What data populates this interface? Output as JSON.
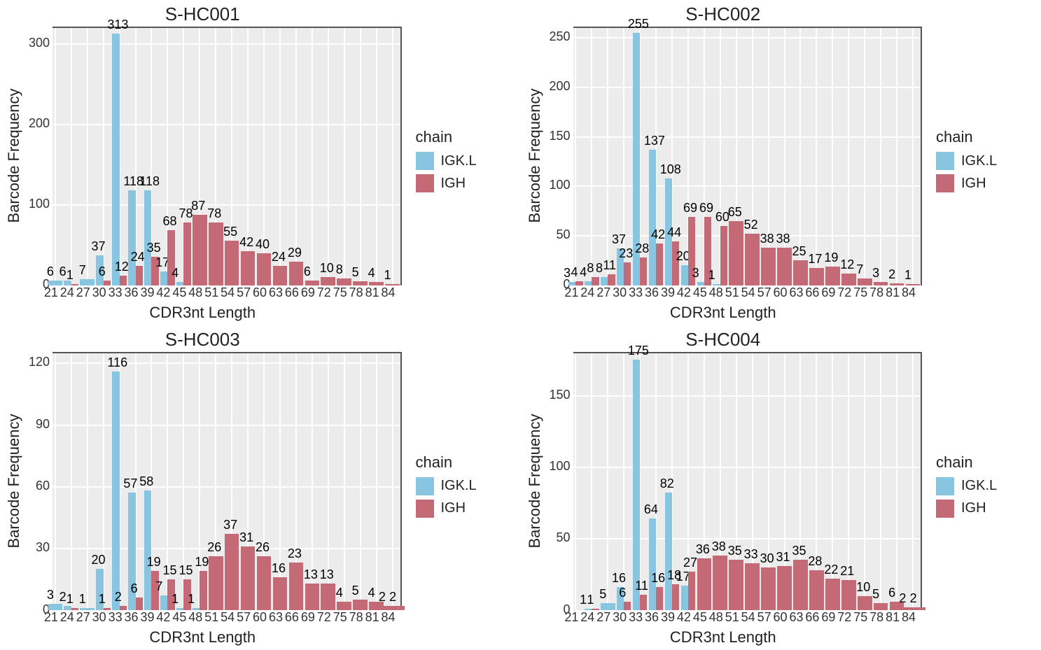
{
  "global": {
    "xlabel": "CDR3nt Length",
    "ylabel": "Barcode Frequency",
    "legend_title": "chain",
    "legend": [
      {
        "label": "IGK.L",
        "color": "#87c5e0"
      },
      {
        "label": "IGH",
        "color": "#c46a77"
      }
    ],
    "background_color": "#ffffff",
    "panel_bg": "#ececec",
    "grid_color": "#ffffff",
    "axis_color": "#555555",
    "label_color": "#000000",
    "bar_border": "none",
    "bar_width": 0.9,
    "value_label_fontsize": 18,
    "axis_tick_fontsize": 18,
    "title_fontsize": 26,
    "xticks": [
      21,
      24,
      27,
      30,
      33,
      36,
      39,
      42,
      45,
      48,
      51,
      54,
      57,
      60,
      63,
      66,
      69,
      72,
      75,
      78,
      81,
      84
    ],
    "x_range": [
      20.5,
      85.5
    ]
  },
  "panels": [
    {
      "title": "S-HC001",
      "ymax": 320,
      "ytick_step": 100,
      "series": [
        {
          "chain": "IGK.L",
          "x": 21,
          "v": 6
        },
        {
          "chain": "IGK.L",
          "x": 24,
          "v": 6
        },
        {
          "chain": "IGH",
          "x": 24,
          "v": 1
        },
        {
          "chain": "IGK.L",
          "x": 27,
          "v": 7
        },
        {
          "chain": "IGK.L",
          "x": 30,
          "v": 37
        },
        {
          "chain": "IGH",
          "x": 30,
          "v": 6
        },
        {
          "chain": "IGK.L",
          "x": 33,
          "v": 313
        },
        {
          "chain": "IGH",
          "x": 33,
          "v": 12
        },
        {
          "chain": "IGK.L",
          "x": 36,
          "v": 118
        },
        {
          "chain": "IGH",
          "x": 36,
          "v": 24
        },
        {
          "chain": "IGK.L",
          "x": 39,
          "v": 118
        },
        {
          "chain": "IGH",
          "x": 39,
          "v": 35
        },
        {
          "chain": "IGK.L",
          "x": 42,
          "v": 17
        },
        {
          "chain": "IGH",
          "x": 42,
          "v": 68
        },
        {
          "chain": "IGK.L",
          "x": 45,
          "v": 4
        },
        {
          "chain": "IGH",
          "x": 45,
          "v": 78
        },
        {
          "chain": "IGH",
          "x": 48,
          "v": 87
        },
        {
          "chain": "IGH",
          "x": 51,
          "v": 78
        },
        {
          "chain": "IGH",
          "x": 54,
          "v": 55
        },
        {
          "chain": "IGH",
          "x": 57,
          "v": 42
        },
        {
          "chain": "IGH",
          "x": 60,
          "v": 40
        },
        {
          "chain": "IGH",
          "x": 63,
          "v": 24
        },
        {
          "chain": "IGH",
          "x": 66,
          "v": 29
        },
        {
          "chain": "IGH",
          "x": 69,
          "v": 6
        },
        {
          "chain": "IGH",
          "x": 72,
          "v": 10
        },
        {
          "chain": "IGH",
          "x": 75,
          "v": 8
        },
        {
          "chain": "IGH",
          "x": 78,
          "v": 5
        },
        {
          "chain": "IGH",
          "x": 81,
          "v": 4
        },
        {
          "chain": "IGH",
          "x": 84,
          "v": 1
        }
      ]
    },
    {
      "title": "S-HC002",
      "ymax": 260,
      "ytick_step": 50,
      "series": [
        {
          "chain": "IGK.L",
          "x": 21,
          "v": 3
        },
        {
          "chain": "IGH",
          "x": 21,
          "v": 4
        },
        {
          "chain": "IGK.L",
          "x": 24,
          "v": 4
        },
        {
          "chain": "IGH",
          "x": 24,
          "v": 8
        },
        {
          "chain": "IGK.L",
          "x": 27,
          "v": 8
        },
        {
          "chain": "IGH",
          "x": 27,
          "v": 11
        },
        {
          "chain": "IGK.L",
          "x": 30,
          "v": 37
        },
        {
          "chain": "IGH",
          "x": 30,
          "v": 23
        },
        {
          "chain": "IGK.L",
          "x": 33,
          "v": 255
        },
        {
          "chain": "IGH",
          "x": 33,
          "v": 28
        },
        {
          "chain": "IGK.L",
          "x": 36,
          "v": 137
        },
        {
          "chain": "IGH",
          "x": 36,
          "v": 42
        },
        {
          "chain": "IGK.L",
          "x": 39,
          "v": 108
        },
        {
          "chain": "IGH",
          "x": 39,
          "v": 44
        },
        {
          "chain": "IGK.L",
          "x": 42,
          "v": 20
        },
        {
          "chain": "IGH",
          "x": 42,
          "v": 69
        },
        {
          "chain": "IGK.L",
          "x": 45,
          "v": 3
        },
        {
          "chain": "IGH",
          "x": 45,
          "v": 69
        },
        {
          "chain": "IGK.L",
          "x": 48,
          "v": 1
        },
        {
          "chain": "IGH",
          "x": 48,
          "v": 60
        },
        {
          "chain": "IGH",
          "x": 51,
          "v": 65
        },
        {
          "chain": "IGH",
          "x": 54,
          "v": 52
        },
        {
          "chain": "IGH",
          "x": 57,
          "v": 38
        },
        {
          "chain": "IGH",
          "x": 60,
          "v": 38
        },
        {
          "chain": "IGH",
          "x": 63,
          "v": 25
        },
        {
          "chain": "IGH",
          "x": 66,
          "v": 17
        },
        {
          "chain": "IGH",
          "x": 69,
          "v": 19
        },
        {
          "chain": "IGH",
          "x": 72,
          "v": 12
        },
        {
          "chain": "IGH",
          "x": 75,
          "v": 7
        },
        {
          "chain": "IGH",
          "x": 78,
          "v": 3
        },
        {
          "chain": "IGH",
          "x": 81,
          "v": 2
        },
        {
          "chain": "IGH",
          "x": 84,
          "v": 1
        }
      ]
    },
    {
      "title": "S-HC003",
      "ymax": 125,
      "ytick_step": 30,
      "series": [
        {
          "chain": "IGK.L",
          "x": 21,
          "v": 3
        },
        {
          "chain": "IGK.L",
          "x": 24,
          "v": 2
        },
        {
          "chain": "IGH",
          "x": 24,
          "v": 1
        },
        {
          "chain": "IGK.L",
          "x": 27,
          "v": 1
        },
        {
          "chain": "IGK.L",
          "x": 30,
          "v": 20
        },
        {
          "chain": "IGH",
          "x": 30,
          "v": 1
        },
        {
          "chain": "IGK.L",
          "x": 33,
          "v": 116
        },
        {
          "chain": "IGH",
          "x": 33,
          "v": 2
        },
        {
          "chain": "IGK.L",
          "x": 36,
          "v": 57
        },
        {
          "chain": "IGH",
          "x": 36,
          "v": 6
        },
        {
          "chain": "IGK.L",
          "x": 39,
          "v": 58
        },
        {
          "chain": "IGH",
          "x": 39,
          "v": 19
        },
        {
          "chain": "IGK.L",
          "x": 42,
          "v": 7
        },
        {
          "chain": "IGH",
          "x": 42,
          "v": 15
        },
        {
          "chain": "IGK.L",
          "x": 45,
          "v": 1
        },
        {
          "chain": "IGH",
          "x": 45,
          "v": 15
        },
        {
          "chain": "IGK.L",
          "x": 48,
          "v": 1
        },
        {
          "chain": "IGH",
          "x": 48,
          "v": 19
        },
        {
          "chain": "IGH",
          "x": 51,
          "v": 26
        },
        {
          "chain": "IGH",
          "x": 54,
          "v": 37
        },
        {
          "chain": "IGH",
          "x": 57,
          "v": 31
        },
        {
          "chain": "IGH",
          "x": 60,
          "v": 26
        },
        {
          "chain": "IGH",
          "x": 63,
          "v": 16
        },
        {
          "chain": "IGH",
          "x": 66,
          "v": 23
        },
        {
          "chain": "IGH",
          "x": 69,
          "v": 13
        },
        {
          "chain": "IGH",
          "x": 72,
          "v": 13
        },
        {
          "chain": "IGH",
          "x": 75,
          "v": 4
        },
        {
          "chain": "IGH",
          "x": 78,
          "v": 5
        },
        {
          "chain": "IGH",
          "x": 81,
          "v": 4
        },
        {
          "chain": "IGH",
          "x": 83,
          "v": 2
        },
        {
          "chain": "IGH",
          "x": 85,
          "v": 2
        }
      ]
    },
    {
      "title": "S-HC004",
      "ymax": 180,
      "ytick_step": 50,
      "series": [
        {
          "chain": "IGK.L",
          "x": 24,
          "v": 1
        },
        {
          "chain": "IGH",
          "x": 24,
          "v": 1
        },
        {
          "chain": "IGK.L",
          "x": 27,
          "v": 5
        },
        {
          "chain": "IGK.L",
          "x": 30,
          "v": 16
        },
        {
          "chain": "IGH",
          "x": 30,
          "v": 6
        },
        {
          "chain": "IGK.L",
          "x": 33,
          "v": 175
        },
        {
          "chain": "IGH",
          "x": 33,
          "v": 11
        },
        {
          "chain": "IGK.L",
          "x": 36,
          "v": 64
        },
        {
          "chain": "IGH",
          "x": 36,
          "v": 16
        },
        {
          "chain": "IGK.L",
          "x": 39,
          "v": 82
        },
        {
          "chain": "IGH",
          "x": 39,
          "v": 18
        },
        {
          "chain": "IGK.L",
          "x": 42,
          "v": 17
        },
        {
          "chain": "IGH",
          "x": 42,
          "v": 27
        },
        {
          "chain": "IGH",
          "x": 45,
          "v": 36
        },
        {
          "chain": "IGH",
          "x": 48,
          "v": 38
        },
        {
          "chain": "IGH",
          "x": 51,
          "v": 35
        },
        {
          "chain": "IGH",
          "x": 54,
          "v": 33
        },
        {
          "chain": "IGH",
          "x": 57,
          "v": 30
        },
        {
          "chain": "IGH",
          "x": 60,
          "v": 31
        },
        {
          "chain": "IGH",
          "x": 63,
          "v": 35
        },
        {
          "chain": "IGH",
          "x": 66,
          "v": 28
        },
        {
          "chain": "IGH",
          "x": 69,
          "v": 22
        },
        {
          "chain": "IGH",
          "x": 72,
          "v": 21
        },
        {
          "chain": "IGH",
          "x": 75,
          "v": 10
        },
        {
          "chain": "IGH",
          "x": 78,
          "v": 5
        },
        {
          "chain": "IGH",
          "x": 81,
          "v": 6
        },
        {
          "chain": "IGH",
          "x": 83,
          "v": 2
        },
        {
          "chain": "IGH",
          "x": 85,
          "v": 2
        }
      ]
    }
  ]
}
